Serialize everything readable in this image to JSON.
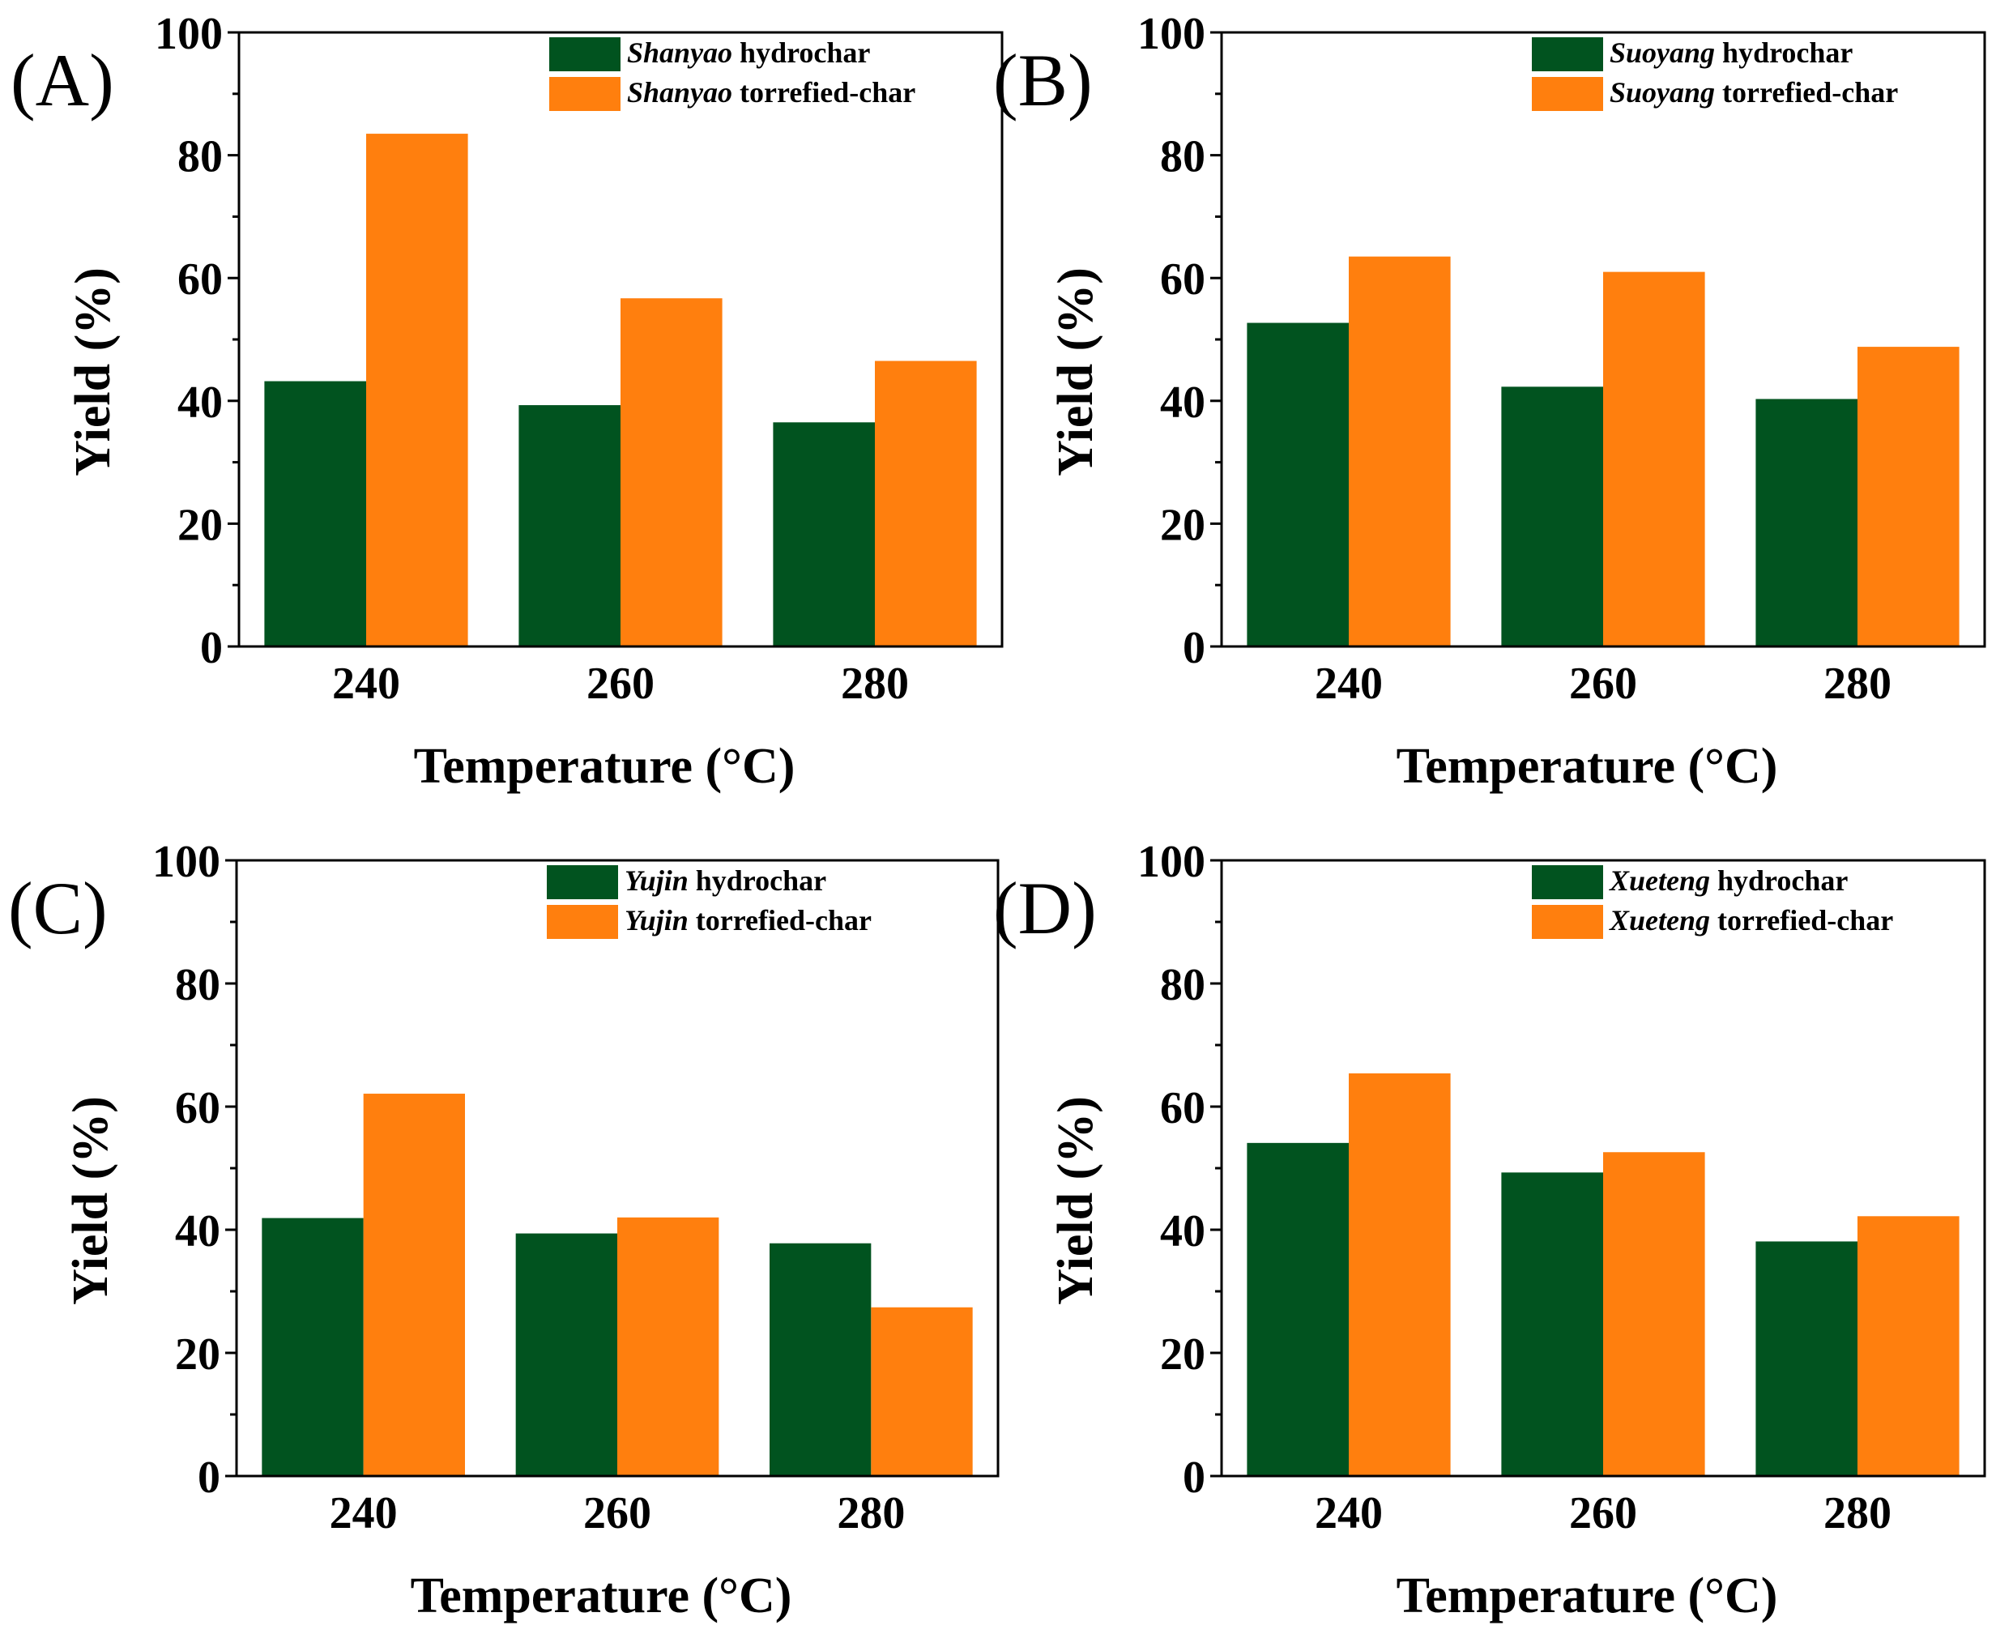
{
  "chart_data": [
    {
      "type": "bar",
      "panel_label": "(A)",
      "categories": [
        "240",
        "260",
        "280"
      ],
      "series": [
        {
          "name": "Shanyao hydrochar",
          "species": "Shanyao",
          "suffix": " hydrochar",
          "color": "#01531f",
          "values": [
            43.2,
            39.3,
            36.5
          ]
        },
        {
          "name": "Shanyao torrefied-char",
          "species": "Shanyao",
          "suffix": " torrefied-char",
          "color": "#ff7f0e",
          "values": [
            83.5,
            56.7,
            46.5
          ]
        }
      ],
      "xlabel": "Temperature (°C)",
      "ylabel": "Yield (%)",
      "ylim": [
        0,
        100
      ],
      "yticks": [
        "0",
        "20",
        "40",
        "60",
        "80",
        "100"
      ],
      "legend_position": "top-right"
    },
    {
      "type": "bar",
      "panel_label": "(B)",
      "categories": [
        "240",
        "260",
        "280"
      ],
      "series": [
        {
          "name": "Suoyang hydrochar",
          "species": "Suoyang",
          "suffix": " hydrochar",
          "color": "#01531f",
          "values": [
            52.7,
            42.3,
            40.3
          ]
        },
        {
          "name": "Suoyang torrefied-char",
          "species": "Suoyang",
          "suffix": " torrefied-char",
          "color": "#ff7f0e",
          "values": [
            63.5,
            61.0,
            48.8
          ]
        }
      ],
      "xlabel": "Temperature (°C)",
      "ylabel": "Yield (%)",
      "ylim": [
        0,
        100
      ],
      "yticks": [
        "0",
        "20",
        "40",
        "60",
        "80",
        "100"
      ],
      "legend_position": "top-right"
    },
    {
      "type": "bar",
      "panel_label": "(C)",
      "categories": [
        "240",
        "260",
        "280"
      ],
      "series": [
        {
          "name": "Yujin hydrochar",
          "species": "Yujin",
          "suffix": " hydrochar",
          "color": "#01531f",
          "values": [
            41.9,
            39.4,
            37.8
          ]
        },
        {
          "name": "Yujin torrefied-char",
          "species": "Yujin",
          "suffix": " torrefied-char",
          "color": "#ff7f0e",
          "values": [
            62.1,
            42.0,
            27.4
          ]
        }
      ],
      "xlabel": "Temperature (°C)",
      "ylabel": "Yield (%)",
      "ylim": [
        0,
        100
      ],
      "yticks": [
        "0",
        "20",
        "40",
        "60",
        "80",
        "100"
      ],
      "legend_position": "top-right"
    },
    {
      "type": "bar",
      "panel_label": "(D)",
      "categories": [
        "240",
        "260",
        "280"
      ],
      "series": [
        {
          "name": "Xueteng hydrochar",
          "species": "Xueteng",
          "suffix": " hydrochar",
          "color": "#01531f",
          "values": [
            54.1,
            49.3,
            38.1
          ]
        },
        {
          "name": "Xueteng torrefied-char",
          "species": "Xueteng",
          "suffix": " torrefied-char",
          "color": "#ff7f0e",
          "values": [
            65.4,
            52.6,
            42.2
          ]
        }
      ],
      "xlabel": "Temperature (°C)",
      "ylabel": "Yield (%)",
      "ylim": [
        0,
        100
      ],
      "yticks": [
        "0",
        "20",
        "40",
        "60",
        "80",
        "100"
      ],
      "legend_position": "top-right"
    }
  ]
}
